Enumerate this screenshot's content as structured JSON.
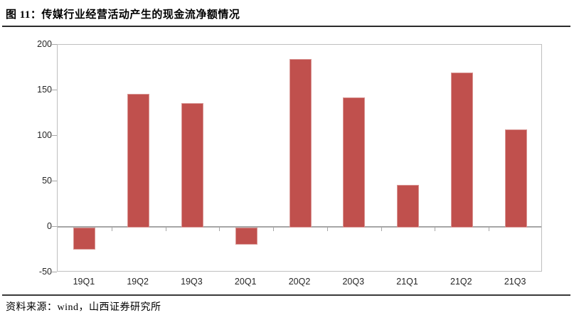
{
  "header": {
    "title": "图 11：传媒行业经营活动产生的现金流净额情况"
  },
  "footer": {
    "source": "资料来源：wind，山西证券研究所"
  },
  "chart_data": {
    "type": "bar",
    "title": "图 11：传媒行业经营活动产生的现金流净额情况",
    "categories": [
      "19Q1",
      "19Q2",
      "19Q3",
      "20Q1",
      "20Q2",
      "20Q3",
      "21Q1",
      "21Q2",
      "21Q3"
    ],
    "values": [
      -24,
      147,
      137,
      -19,
      185,
      143,
      47,
      170,
      108
    ],
    "xlabel": "",
    "ylabel": "",
    "ylim": [
      -50,
      200
    ],
    "yticks": [
      200,
      150,
      100,
      50,
      0,
      -50
    ],
    "grid": false,
    "legend": "none",
    "colors": {
      "bar_fill": "#C0504D",
      "bar_border": "#D99694",
      "axis_line": "#A6A6A6",
      "frame": "#BFBFBF",
      "text": "#262626",
      "divider": "#2B2B2B"
    }
  }
}
